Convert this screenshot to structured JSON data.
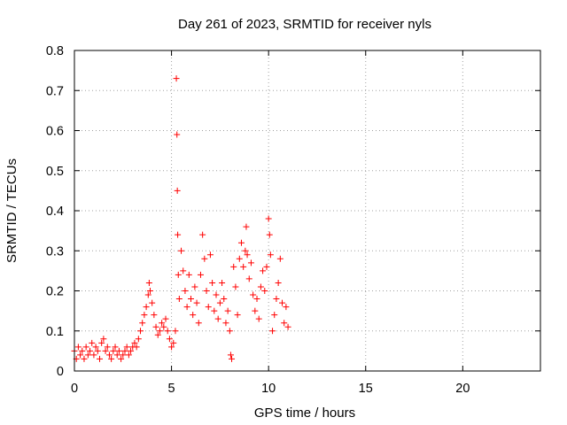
{
  "chart_data": {
    "type": "scatter",
    "title": "Day 261 of 2023, SRMTID for receiver nyls",
    "xlabel": "GPS time / hours",
    "ylabel": "SRMTID / TECUs",
    "xlim": [
      0,
      24
    ],
    "ylim": [
      0,
      0.8
    ],
    "xticks": [
      0,
      5,
      10,
      15,
      20
    ],
    "yticks": [
      0,
      0.1,
      0.2,
      0.3,
      0.4,
      0.5,
      0.6,
      0.7,
      0.8
    ],
    "xtick_labels": [
      "0",
      "5",
      "10",
      "15",
      "20"
    ],
    "ytick_labels": [
      "0",
      "0.1",
      "0.2",
      "0.3",
      "0.4",
      "0.5",
      "0.6",
      "0.7",
      "0.8"
    ],
    "grid": true,
    "marker": "+",
    "color": "#ff0000",
    "series": [
      {
        "name": "SRMTID",
        "points": [
          [
            0.0,
            0.05
          ],
          [
            0.1,
            0.03
          ],
          [
            0.2,
            0.06
          ],
          [
            0.3,
            0.04
          ],
          [
            0.4,
            0.05
          ],
          [
            0.5,
            0.03
          ],
          [
            0.6,
            0.06
          ],
          [
            0.7,
            0.04
          ],
          [
            0.8,
            0.05
          ],
          [
            0.9,
            0.07
          ],
          [
            1.0,
            0.04
          ],
          [
            1.1,
            0.06
          ],
          [
            1.2,
            0.05
          ],
          [
            1.3,
            0.03
          ],
          [
            1.4,
            0.07
          ],
          [
            1.5,
            0.08
          ],
          [
            1.6,
            0.05
          ],
          [
            1.7,
            0.06
          ],
          [
            1.8,
            0.04
          ],
          [
            1.9,
            0.03
          ],
          [
            2.0,
            0.05
          ],
          [
            2.1,
            0.06
          ],
          [
            2.2,
            0.04
          ],
          [
            2.3,
            0.05
          ],
          [
            2.4,
            0.03
          ],
          [
            2.5,
            0.04
          ],
          [
            2.6,
            0.05
          ],
          [
            2.7,
            0.06
          ],
          [
            2.8,
            0.04
          ],
          [
            2.9,
            0.05
          ],
          [
            3.0,
            0.06
          ],
          [
            3.1,
            0.07
          ],
          [
            3.2,
            0.06
          ],
          [
            3.3,
            0.08
          ],
          [
            3.4,
            0.1
          ],
          [
            3.5,
            0.12
          ],
          [
            3.6,
            0.14
          ],
          [
            3.7,
            0.16
          ],
          [
            3.8,
            0.19
          ],
          [
            3.85,
            0.22
          ],
          [
            3.9,
            0.2
          ],
          [
            4.0,
            0.17
          ],
          [
            4.1,
            0.14
          ],
          [
            4.2,
            0.11
          ],
          [
            4.3,
            0.09
          ],
          [
            4.4,
            0.1
          ],
          [
            4.5,
            0.12
          ],
          [
            4.6,
            0.11
          ],
          [
            4.7,
            0.13
          ],
          [
            4.8,
            0.1
          ],
          [
            4.9,
            0.08
          ],
          [
            5.0,
            0.06
          ],
          [
            5.1,
            0.07
          ],
          [
            5.2,
            0.1
          ],
          [
            5.25,
            0.73
          ],
          [
            5.28,
            0.59
          ],
          [
            5.3,
            0.45
          ],
          [
            5.32,
            0.34
          ],
          [
            5.35,
            0.24
          ],
          [
            5.4,
            0.18
          ],
          [
            5.5,
            0.3
          ],
          [
            5.6,
            0.25
          ],
          [
            5.7,
            0.2
          ],
          [
            5.8,
            0.16
          ],
          [
            5.9,
            0.24
          ],
          [
            6.0,
            0.18
          ],
          [
            6.1,
            0.14
          ],
          [
            6.2,
            0.21
          ],
          [
            6.3,
            0.17
          ],
          [
            6.4,
            0.12
          ],
          [
            6.5,
            0.24
          ],
          [
            6.6,
            0.34
          ],
          [
            6.7,
            0.28
          ],
          [
            6.8,
            0.2
          ],
          [
            6.9,
            0.16
          ],
          [
            7.0,
            0.29
          ],
          [
            7.1,
            0.22
          ],
          [
            7.2,
            0.15
          ],
          [
            7.3,
            0.19
          ],
          [
            7.4,
            0.13
          ],
          [
            7.5,
            0.17
          ],
          [
            7.6,
            0.22
          ],
          [
            7.7,
            0.18
          ],
          [
            7.8,
            0.12
          ],
          [
            7.9,
            0.15
          ],
          [
            8.0,
            0.1
          ],
          [
            8.05,
            0.04
          ],
          [
            8.1,
            0.03
          ],
          [
            8.2,
            0.26
          ],
          [
            8.3,
            0.21
          ],
          [
            8.4,
            0.14
          ],
          [
            8.5,
            0.28
          ],
          [
            8.6,
            0.32
          ],
          [
            8.7,
            0.26
          ],
          [
            8.8,
            0.3
          ],
          [
            8.85,
            0.36
          ],
          [
            8.9,
            0.29
          ],
          [
            9.0,
            0.23
          ],
          [
            9.1,
            0.27
          ],
          [
            9.2,
            0.19
          ],
          [
            9.3,
            0.15
          ],
          [
            9.4,
            0.18
          ],
          [
            9.5,
            0.13
          ],
          [
            9.6,
            0.21
          ],
          [
            9.7,
            0.25
          ],
          [
            9.8,
            0.2
          ],
          [
            9.9,
            0.26
          ],
          [
            10.0,
            0.38
          ],
          [
            10.05,
            0.34
          ],
          [
            10.1,
            0.29
          ],
          [
            10.2,
            0.1
          ],
          [
            10.3,
            0.14
          ],
          [
            10.4,
            0.18
          ],
          [
            10.5,
            0.22
          ],
          [
            10.6,
            0.28
          ],
          [
            10.7,
            0.17
          ],
          [
            10.8,
            0.12
          ],
          [
            10.9,
            0.16
          ],
          [
            11.0,
            0.11
          ]
        ]
      }
    ]
  }
}
